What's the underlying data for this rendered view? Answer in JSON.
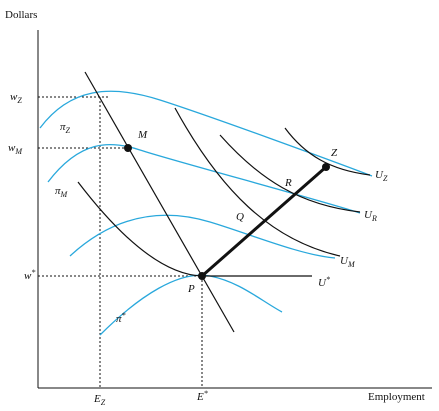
{
  "axes": {
    "y_label": "Dollars",
    "x_label": "Employment",
    "y_ticks": [
      {
        "symbol": "w",
        "subscript": "Z"
      },
      {
        "symbol": "w",
        "subscript": "M"
      },
      {
        "symbol": "w",
        "superscript": "*"
      }
    ],
    "x_ticks": [
      {
        "symbol": "E",
        "subscript": "Z"
      },
      {
        "symbol": "E",
        "superscript": "*"
      }
    ]
  },
  "points": [
    "M",
    "P",
    "Q",
    "R",
    "Z"
  ],
  "isoprofit_curves": [
    {
      "symbol": "π",
      "subscript": "Z"
    },
    {
      "symbol": "π",
      "subscript": "M"
    },
    {
      "symbol": "π",
      "superscript": "*"
    }
  ],
  "indifference_curves": [
    {
      "symbol": "U",
      "subscript": "Z"
    },
    {
      "symbol": "U",
      "subscript": "R"
    },
    {
      "symbol": "U",
      "subscript": "M"
    },
    {
      "symbol": "U",
      "superscript": "*"
    }
  ]
}
